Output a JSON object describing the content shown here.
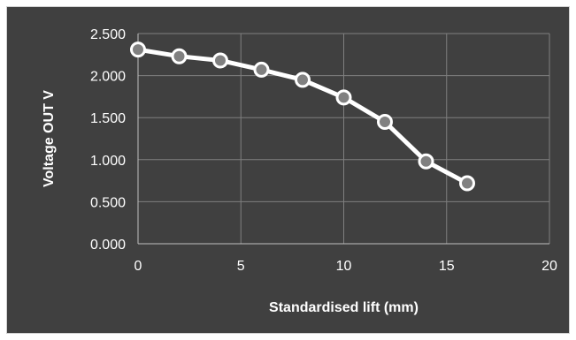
{
  "colors": {
    "background": "#404040",
    "plot_area": "#404040",
    "gridline": "#7f7f7f",
    "axis": "#bfbfbf",
    "series_line": "#ffffff",
    "marker_fill": "#808080",
    "marker_stroke": "#ffffff",
    "text": "#ffffff"
  },
  "chart_data": {
    "type": "line",
    "title": "",
    "xlabel": "Standardised lift (mm)",
    "ylabel": "Voltage OUT V",
    "xlim": [
      0,
      20
    ],
    "ylim": [
      0,
      2.5
    ],
    "x_ticks": [
      "0",
      "5",
      "10",
      "15",
      "20"
    ],
    "y_ticks": [
      "0.000",
      "0.500",
      "1.000",
      "1.500",
      "2.000",
      "2.500"
    ],
    "grid": true,
    "legend": "none",
    "series": [
      {
        "x": [
          0,
          2,
          4,
          6,
          8,
          10,
          12,
          14,
          16
        ],
        "y": [
          2.31,
          2.23,
          2.18,
          2.07,
          1.95,
          1.74,
          1.45,
          0.98,
          0.72
        ]
      }
    ]
  }
}
